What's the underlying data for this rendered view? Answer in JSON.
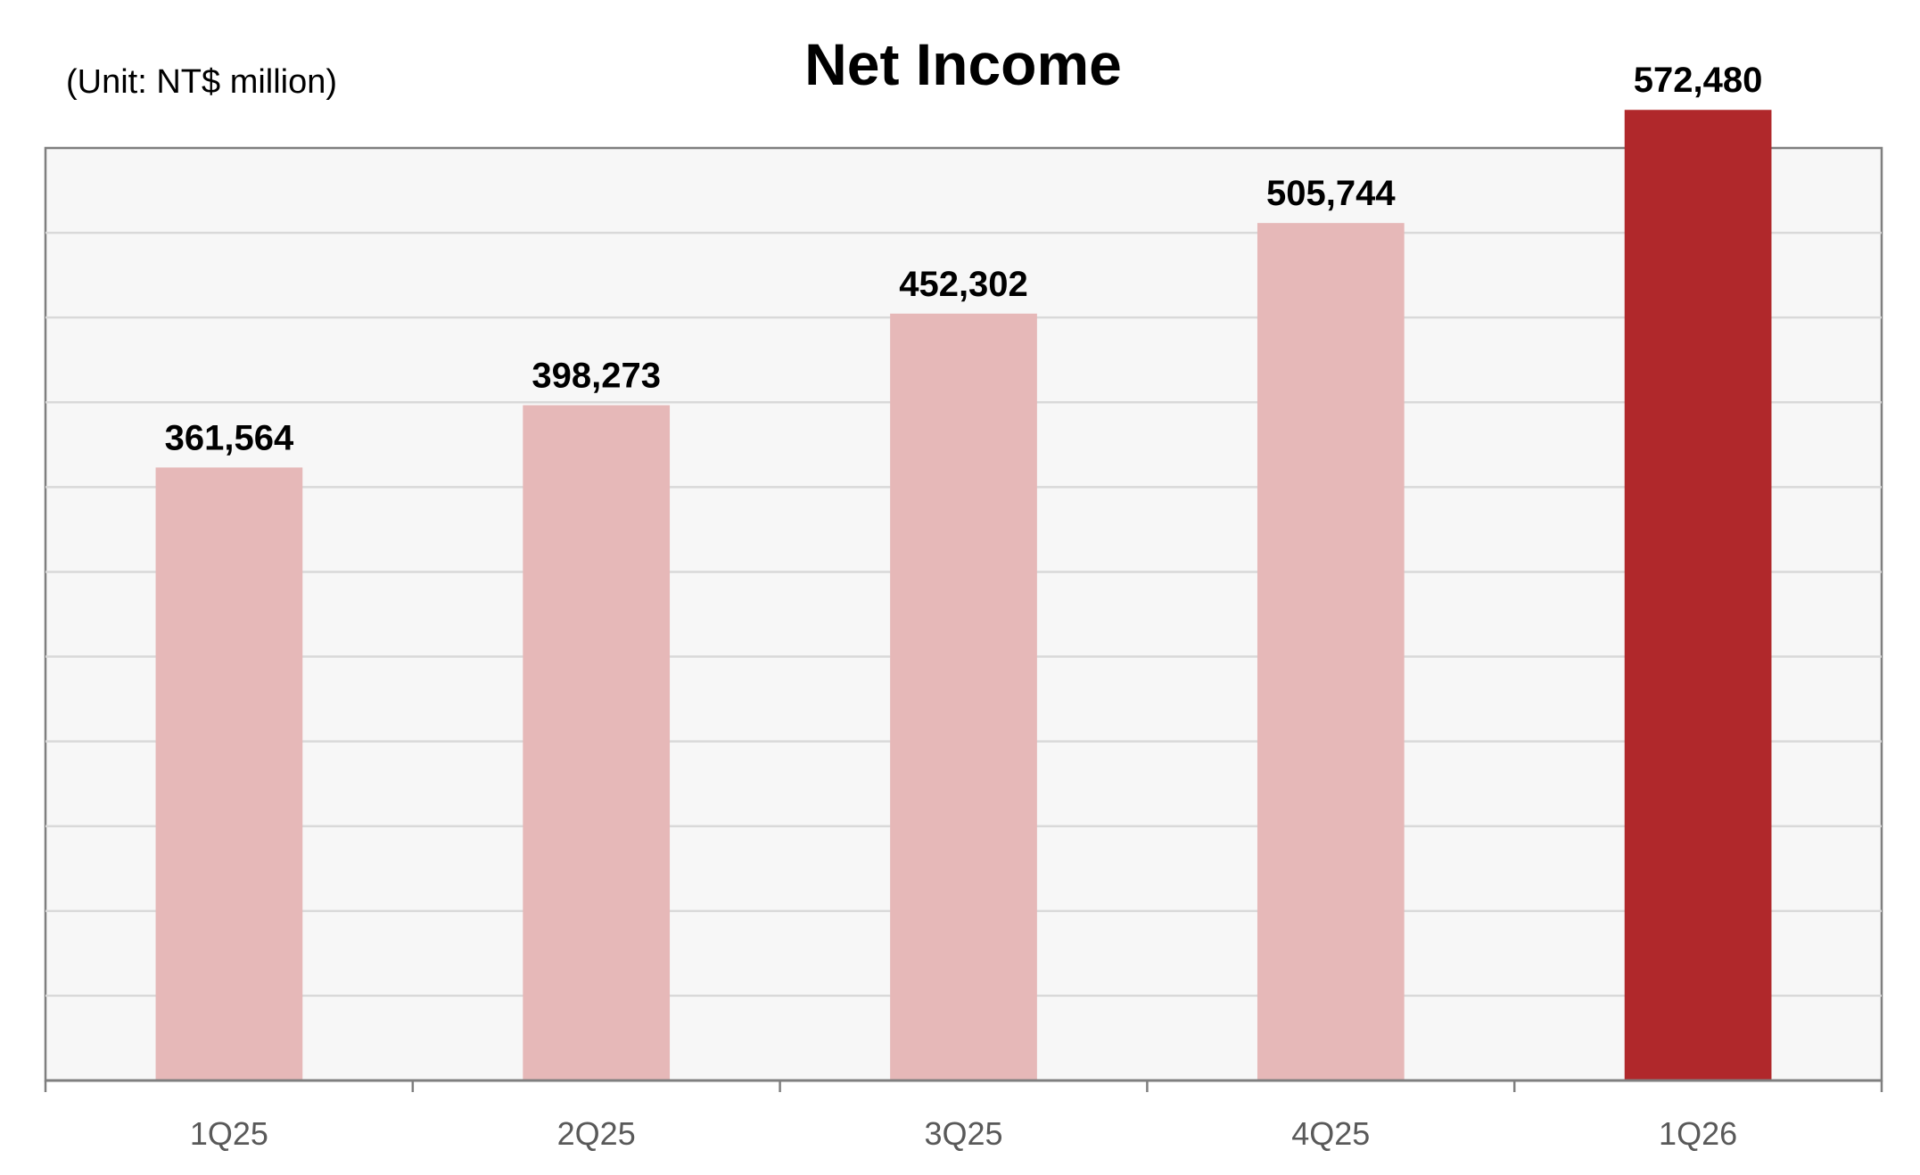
{
  "chart_data": {
    "type": "bar",
    "title": "Net Income",
    "subtitle": "(Unit: NT$ million)",
    "categories": [
      "1Q25",
      "2Q25",
      "3Q25",
      "4Q25",
      "1Q26"
    ],
    "values": [
      361564,
      398273,
      452302,
      505744,
      572480
    ],
    "data_labels": [
      "361,564",
      "398,273",
      "452,302",
      "505,744",
      "572,480"
    ],
    "xlabel": "",
    "ylabel": "",
    "ylim": [
      0,
      550000
    ],
    "y_axis_labels_shown": false,
    "grid": true,
    "legend": "none",
    "colors": {
      "bar": "#E6B8B8",
      "highlight_bar": "#B0282B",
      "plot_background": "#F7F7F7",
      "grid": "#D9D9D9",
      "axis": "#7F7F7F"
    },
    "highlight_index": 4
  }
}
